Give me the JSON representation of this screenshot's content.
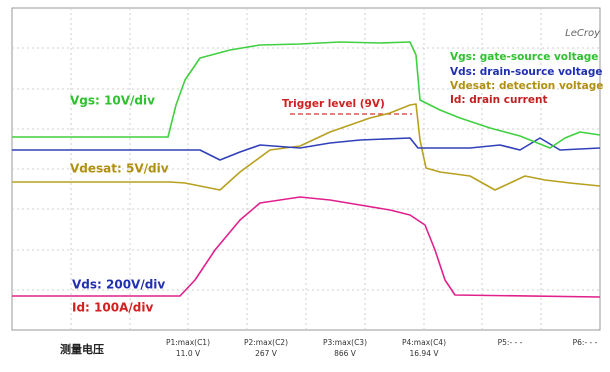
{
  "brand": "LeCroy",
  "legend": [
    "Vgs: gate-source voltage",
    "Vds: drain-source voltage",
    "Vdesat: detection voltage",
    "Id: drain current"
  ],
  "scales": [
    "Vgs: 10V/div",
    "Vdesat: 5V/div",
    "Vds: 200V/div",
    "Id: 100A/div"
  ],
  "trigger": "Trigger level (9V)",
  "footer": "测量电压",
  "measurements": [
    {
      "name": "P1:max(C1)",
      "value": "11.0 V"
    },
    {
      "name": "P2:max(C2)",
      "value": "267 V"
    },
    {
      "name": "P3:max(C3)",
      "value": "866 V"
    },
    {
      "name": "P4:max(C4)",
      "value": "16.94 V"
    },
    {
      "name": "P5:- - -",
      "value": null
    },
    {
      "name": "P6:- - -",
      "value": null
    }
  ]
}
